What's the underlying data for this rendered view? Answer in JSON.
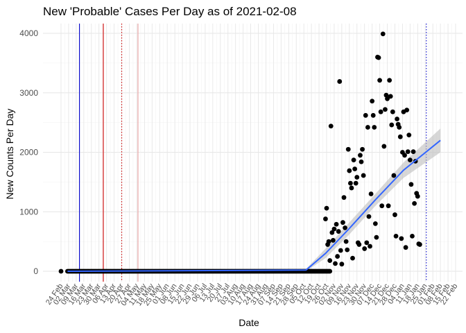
{
  "chart_data": {
    "type": "scatter",
    "title": "New 'Probable' Cases Per Day as of 2021-02-08",
    "xlabel": "Date",
    "ylabel": "New Counts Per Day",
    "x_range": [
      "2020-02-24",
      "2021-02-22"
    ],
    "ylim": [
      -120,
      4100
    ],
    "y_ticks": [
      0,
      1000,
      2000,
      3000,
      4000
    ],
    "x_tick_labels": [
      "24 Feb",
      "02 Mar",
      "09 Mar",
      "16 Mar",
      "23 Mar",
      "30 Mar",
      "06 Apr",
      "13 Apr",
      "20 Apr",
      "27 Apr",
      "04 May",
      "11 May",
      "18 May",
      "25 May",
      "01 Jun",
      "08 Jun",
      "15 Jun",
      "22 Jun",
      "29 Jun",
      "06 Jul",
      "13 Jul",
      "20 Jul",
      "27 Jul",
      "03 Aug",
      "10 Aug",
      "17 Aug",
      "24 Aug",
      "31 Aug",
      "07 Sep",
      "14 Sep",
      "21 Sep",
      "28 Sep",
      "05 Oct",
      "12 Oct",
      "19 Oct",
      "26 Oct",
      "02 Nov",
      "09 Nov",
      "16 Nov",
      "23 Nov",
      "30 Nov",
      "07 Dec",
      "14 Dec",
      "21 Dec",
      "28 Dec",
      "04 Jan",
      "11 Jan",
      "18 Jan",
      "25 Jan",
      "01 Feb",
      "08 Feb",
      "15 Feb",
      "22 Feb"
    ],
    "grid": true,
    "vertical_lines": [
      {
        "date": "2020-03-12",
        "color": "#0000cc",
        "style": "solid"
      },
      {
        "date": "2020-04-03",
        "color": "#cc0000",
        "style": "solid"
      },
      {
        "date": "2020-04-20",
        "color": "#cc0000",
        "style": "dotted"
      },
      {
        "date": "2020-05-05",
        "color": "#e8a0a0",
        "style": "solid"
      },
      {
        "date": "2021-01-26",
        "color": "#0000cc",
        "style": "dotted"
      }
    ],
    "trend": {
      "color": "#3366ff",
      "band_color": "#bdbdbd",
      "points": [
        {
          "date": "2020-03-01",
          "y": 0,
          "lo": -20,
          "hi": 20
        },
        {
          "date": "2020-10-07",
          "y": 20,
          "lo": 0,
          "hi": 40
        },
        {
          "date": "2020-10-25",
          "y": 300,
          "lo": 220,
          "hi": 380
        },
        {
          "date": "2020-11-15",
          "y": 700,
          "lo": 600,
          "hi": 800
        },
        {
          "date": "2020-12-10",
          "y": 1200,
          "lo": 1100,
          "hi": 1300
        },
        {
          "date": "2021-01-05",
          "y": 1700,
          "lo": 1570,
          "hi": 1830
        },
        {
          "date": "2021-02-08",
          "y": 2200,
          "lo": 2000,
          "hi": 2400
        }
      ]
    },
    "zero_run": {
      "from": "2020-03-01",
      "to": "2020-10-29",
      "y": 0
    },
    "series": [
      {
        "color": "#000000",
        "points": [
          {
            "date": "2020-10-25",
            "y": 880
          },
          {
            "date": "2020-10-26",
            "y": 1060
          },
          {
            "date": "2020-10-27",
            "y": 450
          },
          {
            "date": "2020-10-28",
            "y": 500
          },
          {
            "date": "2020-10-29",
            "y": 180
          },
          {
            "date": "2020-10-30",
            "y": 2440
          },
          {
            "date": "2020-10-31",
            "y": 650
          },
          {
            "date": "2020-11-01",
            "y": 520
          },
          {
            "date": "2020-11-02",
            "y": 710
          },
          {
            "date": "2020-11-03",
            "y": 130
          },
          {
            "date": "2020-11-04",
            "y": 790
          },
          {
            "date": "2020-11-05",
            "y": 250
          },
          {
            "date": "2020-11-06",
            "y": 670
          },
          {
            "date": "2020-11-07",
            "y": 3190
          },
          {
            "date": "2020-11-08",
            "y": 350
          },
          {
            "date": "2020-11-09",
            "y": 120
          },
          {
            "date": "2020-11-10",
            "y": 820
          },
          {
            "date": "2020-11-11",
            "y": 1240
          },
          {
            "date": "2020-11-12",
            "y": 730
          },
          {
            "date": "2020-11-13",
            "y": 500
          },
          {
            "date": "2020-11-14",
            "y": 360
          },
          {
            "date": "2020-11-15",
            "y": 2050
          },
          {
            "date": "2020-11-16",
            "y": 1690
          },
          {
            "date": "2020-11-17",
            "y": 1480
          },
          {
            "date": "2020-11-18",
            "y": 1400
          },
          {
            "date": "2020-11-19",
            "y": 220
          },
          {
            "date": "2020-11-20",
            "y": 1870
          },
          {
            "date": "2020-11-21",
            "y": 1720
          },
          {
            "date": "2020-11-22",
            "y": 1480
          },
          {
            "date": "2020-11-23",
            "y": 1580
          },
          {
            "date": "2020-11-24",
            "y": 480
          },
          {
            "date": "2020-11-25",
            "y": 450
          },
          {
            "date": "2020-11-26",
            "y": 1950
          },
          {
            "date": "2020-11-27",
            "y": 1840
          },
          {
            "date": "2020-11-28",
            "y": 2050
          },
          {
            "date": "2020-11-29",
            "y": 1610
          },
          {
            "date": "2020-11-30",
            "y": 380
          },
          {
            "date": "2020-12-01",
            "y": 2620
          },
          {
            "date": "2020-12-02",
            "y": 480
          },
          {
            "date": "2020-12-03",
            "y": 2420
          },
          {
            "date": "2020-12-04",
            "y": 920
          },
          {
            "date": "2020-12-05",
            "y": 420
          },
          {
            "date": "2020-12-06",
            "y": 1300
          },
          {
            "date": "2020-12-07",
            "y": 2860
          },
          {
            "date": "2020-12-08",
            "y": 2620
          },
          {
            "date": "2020-12-09",
            "y": 2420
          },
          {
            "date": "2020-12-10",
            "y": 800
          },
          {
            "date": "2020-12-11",
            "y": 570
          },
          {
            "date": "2020-12-12",
            "y": 3600
          },
          {
            "date": "2020-12-13",
            "y": 3590
          },
          {
            "date": "2020-12-14",
            "y": 3210
          },
          {
            "date": "2020-12-15",
            "y": 2680
          },
          {
            "date": "2020-12-16",
            "y": 1100
          },
          {
            "date": "2020-12-17",
            "y": 3990
          },
          {
            "date": "2020-12-18",
            "y": 2100
          },
          {
            "date": "2020-12-19",
            "y": 2720
          },
          {
            "date": "2020-12-20",
            "y": 2960
          },
          {
            "date": "2020-12-21",
            "y": 2900
          },
          {
            "date": "2020-12-22",
            "y": 1100
          },
          {
            "date": "2020-12-23",
            "y": 3210
          },
          {
            "date": "2020-12-24",
            "y": 2940
          },
          {
            "date": "2020-12-25",
            "y": 2460
          },
          {
            "date": "2020-12-26",
            "y": 2680
          },
          {
            "date": "2020-12-27",
            "y": 1610
          },
          {
            "date": "2020-12-28",
            "y": 950
          },
          {
            "date": "2020-12-29",
            "y": 590
          },
          {
            "date": "2020-12-30",
            "y": 2560
          },
          {
            "date": "2020-12-31",
            "y": 2470
          },
          {
            "date": "2021-01-01",
            "y": 2420
          },
          {
            "date": "2021-01-02",
            "y": 2260
          },
          {
            "date": "2021-01-03",
            "y": 550
          },
          {
            "date": "2021-01-04",
            "y": 2000
          },
          {
            "date": "2021-01-05",
            "y": 2680
          },
          {
            "date": "2021-01-06",
            "y": 1950
          },
          {
            "date": "2021-01-07",
            "y": 400
          },
          {
            "date": "2021-01-08",
            "y": 2710
          },
          {
            "date": "2021-01-09",
            "y": 2010
          },
          {
            "date": "2021-01-10",
            "y": 2290
          },
          {
            "date": "2021-01-11",
            "y": 1870
          },
          {
            "date": "2021-01-12",
            "y": 1460
          },
          {
            "date": "2021-01-13",
            "y": 590
          },
          {
            "date": "2021-01-14",
            "y": 2010
          },
          {
            "date": "2021-01-15",
            "y": 1140
          },
          {
            "date": "2021-01-16",
            "y": 1850
          },
          {
            "date": "2021-01-17",
            "y": 1310
          },
          {
            "date": "2021-01-18",
            "y": 1260
          },
          {
            "date": "2021-01-19",
            "y": 460
          },
          {
            "date": "2021-01-20",
            "y": 450
          }
        ]
      }
    ]
  }
}
